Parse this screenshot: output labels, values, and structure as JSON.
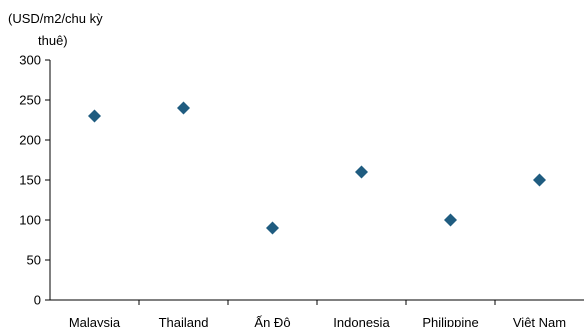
{
  "chart_data": {
    "type": "scatter",
    "ylabel": "(USD/m2/chu kỳ thuê)",
    "ylabel_lines": [
      "(USD/m2/chu kỳ",
      "thuê)"
    ],
    "categories": [
      "Malaysia",
      "Thailand",
      "Ấn Độ",
      "Indonesia",
      "Philippine",
      "Việt Nam"
    ],
    "values": [
      230,
      240,
      90,
      160,
      100,
      150
    ],
    "ylim": [
      0,
      300
    ],
    "yticks": [
      0,
      50,
      100,
      150,
      200,
      250,
      300
    ],
    "marker": "diamond",
    "marker_color": "#1f5c80",
    "grid": false,
    "legend": "none"
  }
}
